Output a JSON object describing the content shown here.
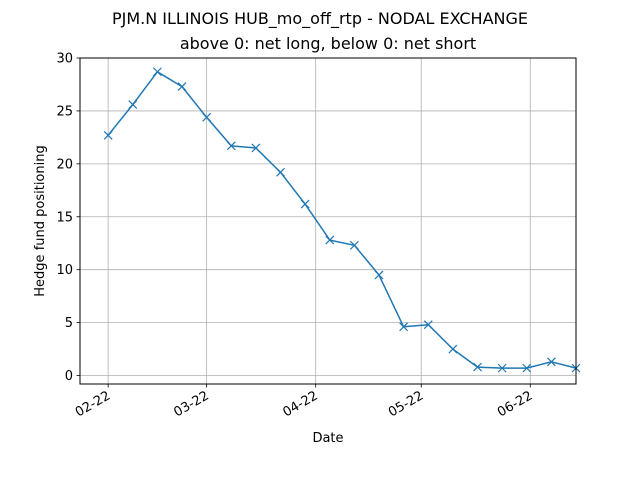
{
  "chart_data": {
    "type": "line",
    "title": "PJM.N ILLINOIS HUB_mo_off_rtp - NODAL EXCHANGE",
    "subtitle": "above 0: net long, below 0: net short",
    "xlabel": "Date",
    "ylabel": "Hedge fund positioning",
    "ylim": [
      -0.8,
      30
    ],
    "xlim": [
      "2022-02-14",
      "2022-07-05"
    ],
    "grid": true,
    "marker": "x",
    "color": "#1f77b4",
    "x_ticks": [
      {
        "date": "2022-02-22",
        "label": "02-22"
      },
      {
        "date": "2022-03-22",
        "label": "03-22"
      },
      {
        "date": "2022-04-22",
        "label": "04-22"
      },
      {
        "date": "2022-05-22",
        "label": "05-22"
      },
      {
        "date": "2022-06-22",
        "label": "06-22"
      }
    ],
    "y_ticks": [
      0,
      5,
      10,
      15,
      20,
      25,
      30
    ],
    "series": [
      {
        "x": [
          "2022-02-22",
          "2022-03-01",
          "2022-03-08",
          "2022-03-15",
          "2022-03-22",
          "2022-03-29",
          "2022-04-05",
          "2022-04-12",
          "2022-04-19",
          "2022-04-26",
          "2022-05-03",
          "2022-05-10",
          "2022-05-17",
          "2022-05-24",
          "2022-05-31",
          "2022-06-07",
          "2022-06-14",
          "2022-06-21",
          "2022-06-28",
          "2022-07-05"
        ],
        "y": [
          22.7,
          25.6,
          28.7,
          27.3,
          24.4,
          21.7,
          21.5,
          19.2,
          16.2,
          12.8,
          12.3,
          9.5,
          4.6,
          4.8,
          2.5,
          0.8,
          0.7,
          0.7,
          1.3,
          0.7
        ]
      }
    ]
  }
}
